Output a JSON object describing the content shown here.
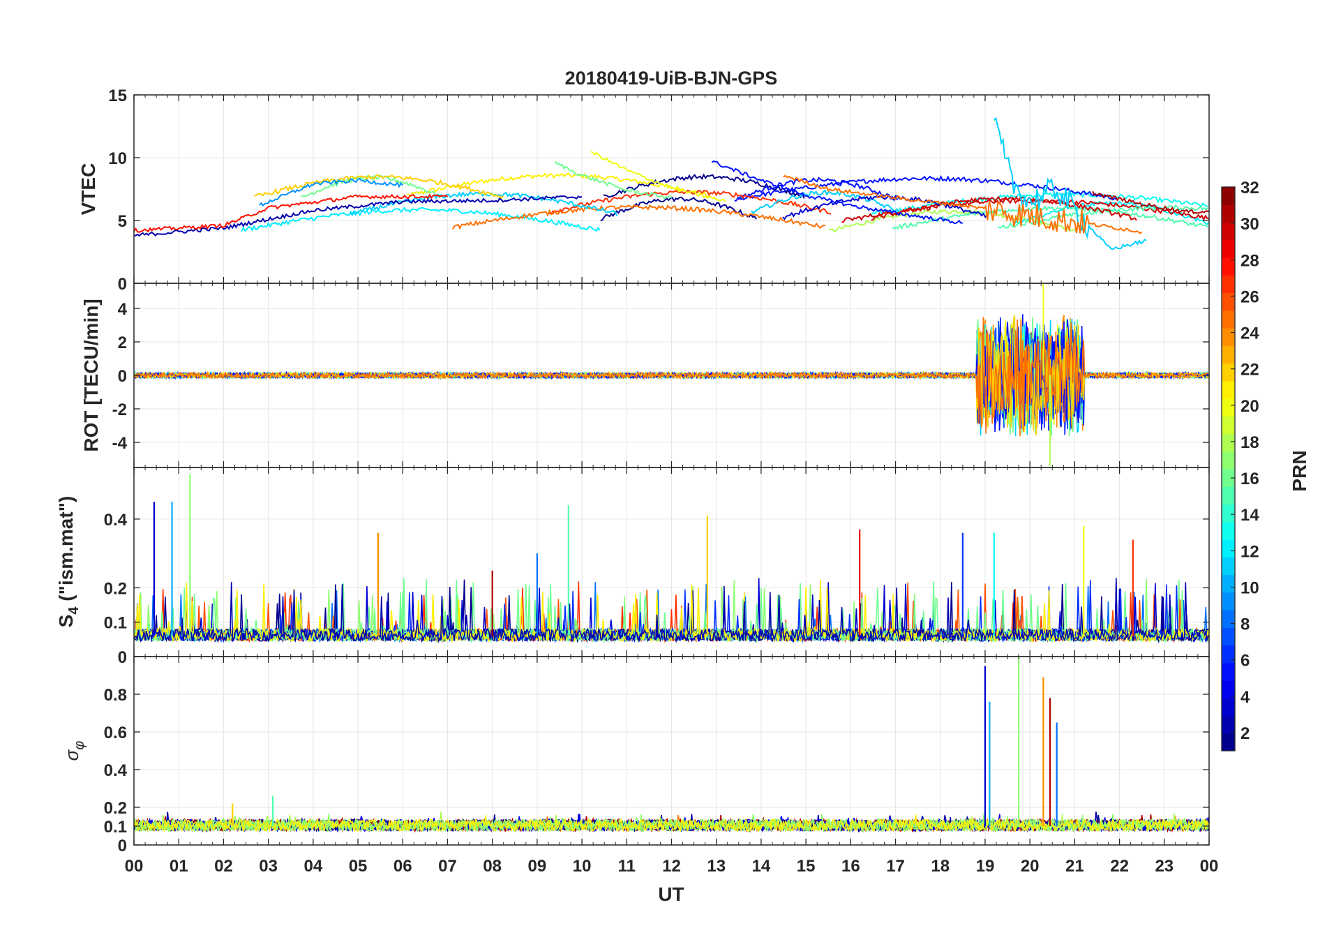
{
  "figure": {
    "title": "20180419-UiB-BJN-GPS"
  },
  "chart_data": [
    {
      "type": "line",
      "panel": "vtec",
      "ylabel": "VTEC",
      "ylim": [
        0,
        15
      ],
      "yticks": [
        0,
        5,
        10,
        15
      ],
      "yticklabels": [
        "0",
        "5",
        "10",
        "15"
      ],
      "x_unit": "hours UT",
      "grid": true,
      "series": [
        {
          "prn": 2,
          "x": [
            0,
            2,
            4,
            6,
            8,
            10
          ],
          "y": [
            3.8,
            4.4,
            5.8,
            6.5,
            6.6,
            6.9
          ]
        },
        {
          "prn": 5,
          "x": [
            12.9,
            14,
            15,
            16,
            17,
            18.5
          ],
          "y": [
            9.7,
            8.2,
            7.0,
            6.2,
            5.6,
            4.8
          ]
        },
        {
          "prn": 9,
          "x": [
            2.8,
            4,
            5,
            6
          ],
          "y": [
            6.2,
            7.9,
            8.2,
            7.8
          ]
        },
        {
          "prn": 11,
          "x": [
            19.2,
            19.6,
            20,
            20.6,
            21.2,
            21.8,
            22.6
          ],
          "y": [
            12.8,
            8.0,
            6.5,
            7.5,
            5.0,
            2.7,
            3.4
          ]
        },
        {
          "prn": 16,
          "x": [
            9.4,
            10,
            11,
            12
          ],
          "y": [
            9.6,
            8.6,
            7.4,
            6.8
          ]
        },
        {
          "prn": 20,
          "x": [
            10.2,
            11,
            12,
            13.2
          ],
          "y": [
            10.5,
            9.0,
            7.6,
            6.5
          ]
        },
        {
          "prn": 25,
          "x": [
            14.5,
            15.5,
            17,
            18.5,
            20,
            21,
            22.5
          ],
          "y": [
            8.6,
            7.5,
            6.8,
            6.2,
            5.4,
            4.9,
            4.1
          ]
        },
        {
          "prn": 28,
          "x": [
            0,
            2,
            3,
            5,
            7
          ],
          "y": [
            4.2,
            4.6,
            6.0,
            6.9,
            6.9
          ]
        },
        {
          "prn": 31,
          "x": [
            21.4,
            22.5,
            23.5,
            24
          ],
          "y": [
            7.2,
            6.3,
            5.7,
            5.7
          ]
        }
      ]
    },
    {
      "type": "line",
      "panel": "rot",
      "ylabel": "ROT [TECU/min]",
      "ylim": [
        -5.5,
        5.5
      ],
      "yticks": [
        -4,
        -2,
        0,
        2,
        4
      ],
      "yticklabels": [
        "-4",
        "-2",
        "0",
        "2",
        "4"
      ],
      "grid": true,
      "baseline": 0,
      "disturbed_interval": [
        18.8,
        21.2
      ],
      "max_value": 5.5,
      "min_value": -5.4
    },
    {
      "type": "line",
      "panel": "s4",
      "ylabel": "S4 (\"ism.mat\")",
      "ylim": [
        0,
        0.55
      ],
      "yticks": [
        0,
        0.1,
        0.2,
        0.4
      ],
      "yticklabels": [
        "0",
        "0.1",
        "0.2",
        "0.4"
      ],
      "grid": true,
      "baseline": 0.06,
      "peaks": [
        {
          "x": 0.45,
          "y": 0.45
        },
        {
          "x": 0.85,
          "y": 0.45
        },
        {
          "x": 1.25,
          "y": 0.53
        },
        {
          "x": 5.45,
          "y": 0.36
        },
        {
          "x": 8.0,
          "y": 0.25
        },
        {
          "x": 9.0,
          "y": 0.3
        },
        {
          "x": 9.7,
          "y": 0.44
        },
        {
          "x": 12.8,
          "y": 0.41
        },
        {
          "x": 16.2,
          "y": 0.37
        },
        {
          "x": 18.5,
          "y": 0.36
        },
        {
          "x": 19.2,
          "y": 0.36
        },
        {
          "x": 21.2,
          "y": 0.38
        },
        {
          "x": 22.3,
          "y": 0.34
        }
      ]
    },
    {
      "type": "line",
      "panel": "sigma_phi",
      "ylabel": "σφ",
      "ylim": [
        0,
        1
      ],
      "yticks": [
        0,
        0.1,
        0.2,
        0.4,
        0.6,
        0.8
      ],
      "yticklabels": [
        "0",
        "0.1",
        "0.2",
        "0.4",
        "0.6",
        "0.8"
      ],
      "grid": true,
      "baseline": 0.1,
      "peaks": [
        {
          "x": 19.0,
          "y": 0.95
        },
        {
          "x": 19.1,
          "y": 0.76
        },
        {
          "x": 19.75,
          "y": 1.0
        },
        {
          "x": 20.3,
          "y": 0.89
        },
        {
          "x": 20.45,
          "y": 0.78
        },
        {
          "x": 20.6,
          "y": 0.65
        },
        {
          "x": 3.1,
          "y": 0.26
        },
        {
          "x": 2.2,
          "y": 0.22
        }
      ]
    }
  ],
  "xaxis": {
    "label": "UT",
    "xlim": [
      0,
      24
    ],
    "ticklabels": [
      "00",
      "01",
      "02",
      "03",
      "04",
      "05",
      "06",
      "07",
      "08",
      "09",
      "10",
      "11",
      "12",
      "13",
      "14",
      "15",
      "16",
      "17",
      "18",
      "19",
      "20",
      "21",
      "22",
      "23",
      "00"
    ]
  },
  "colorbar": {
    "label": "PRN",
    "range": [
      1,
      32
    ],
    "ticklabels": [
      "2",
      "4",
      "6",
      "8",
      "10",
      "12",
      "14",
      "16",
      "18",
      "20",
      "22",
      "24",
      "26",
      "28",
      "30",
      "32"
    ]
  }
}
